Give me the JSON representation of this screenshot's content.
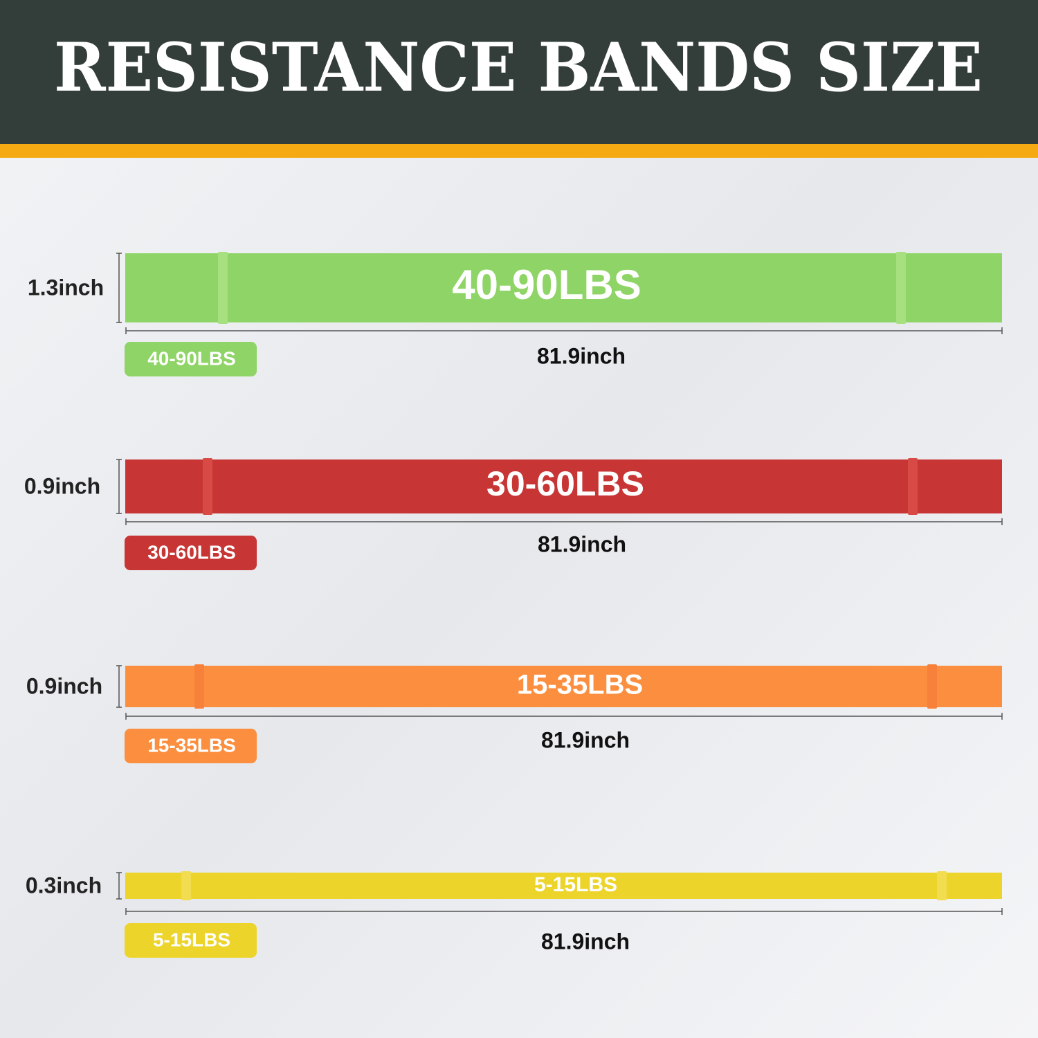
{
  "title": "RESISTANCE BANDS SIZE",
  "bands": [
    {
      "width": "1.3inch",
      "label": "40-90LBS",
      "tag": "40-90LBS",
      "length": "81.9inch"
    },
    {
      "width": "0.9inch",
      "label": "30-60LBS",
      "tag": "30-60LBS",
      "length": "81.9inch"
    },
    {
      "width": "0.9inch",
      "label": "15-35LBS",
      "tag": "15-35LBS",
      "length": "81.9inch"
    },
    {
      "width": "0.3inch",
      "label": "5-15LBS",
      "tag": "5-15LBS",
      "length": "81.9inch"
    }
  ]
}
